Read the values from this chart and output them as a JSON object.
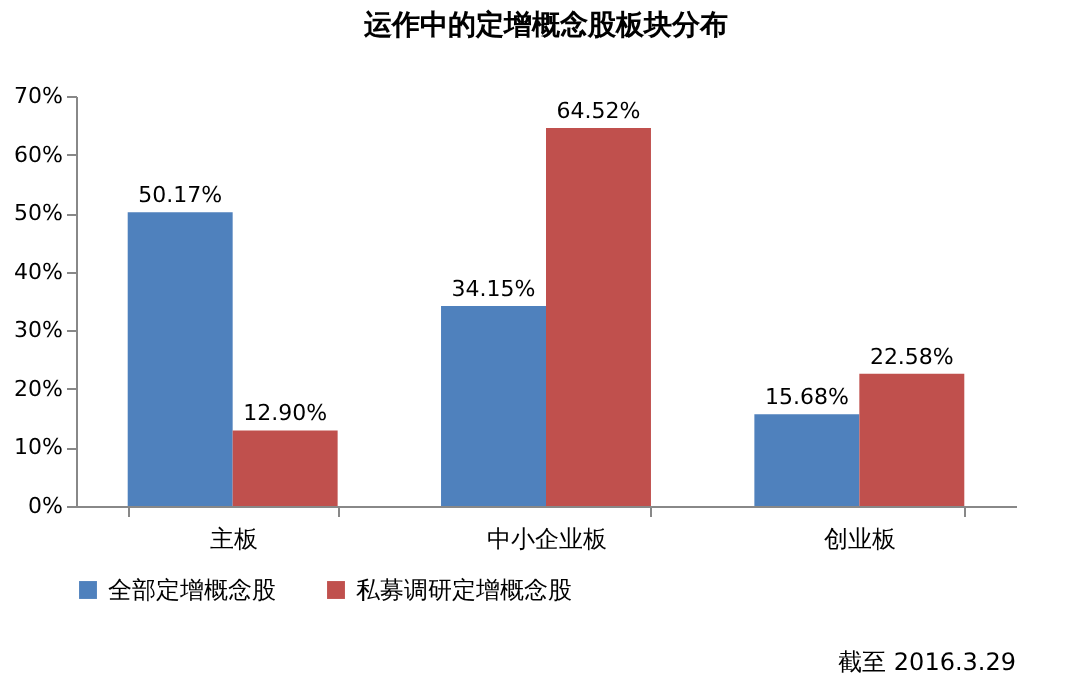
{
  "chart_data": {
    "type": "bar",
    "title": "运作中的定增概念股板块分布",
    "categories": [
      "主板",
      "中小企业板",
      "创业板"
    ],
    "series": [
      {
        "name": "全部定增概念股",
        "color": "#4f81bd",
        "values": [
          50.17,
          34.15,
          15.68
        ],
        "value_labels": [
          "50.17%",
          "34.15%",
          "15.68%"
        ]
      },
      {
        "name": "私募调研定增概念股",
        "color": "#c0504d",
        "values": [
          12.9,
          64.52,
          22.58
        ],
        "value_labels": [
          "12.90%",
          "64.52%",
          "22.58%"
        ]
      }
    ],
    "ylim": [
      0,
      70
    ],
    "yticks": [
      {
        "value": 0,
        "label": "0%"
      },
      {
        "value": 10,
        "label": "10%"
      },
      {
        "value": 20,
        "label": "20%"
      },
      {
        "value": 30,
        "label": "30%"
      },
      {
        "value": 40,
        "label": "40%"
      },
      {
        "value": 50,
        "label": "50%"
      },
      {
        "value": 60,
        "label": "60%"
      },
      {
        "value": 70,
        "label": "70%"
      }
    ],
    "legend": "bottom",
    "annotations": [
      "截至 2016.3.29"
    ]
  }
}
